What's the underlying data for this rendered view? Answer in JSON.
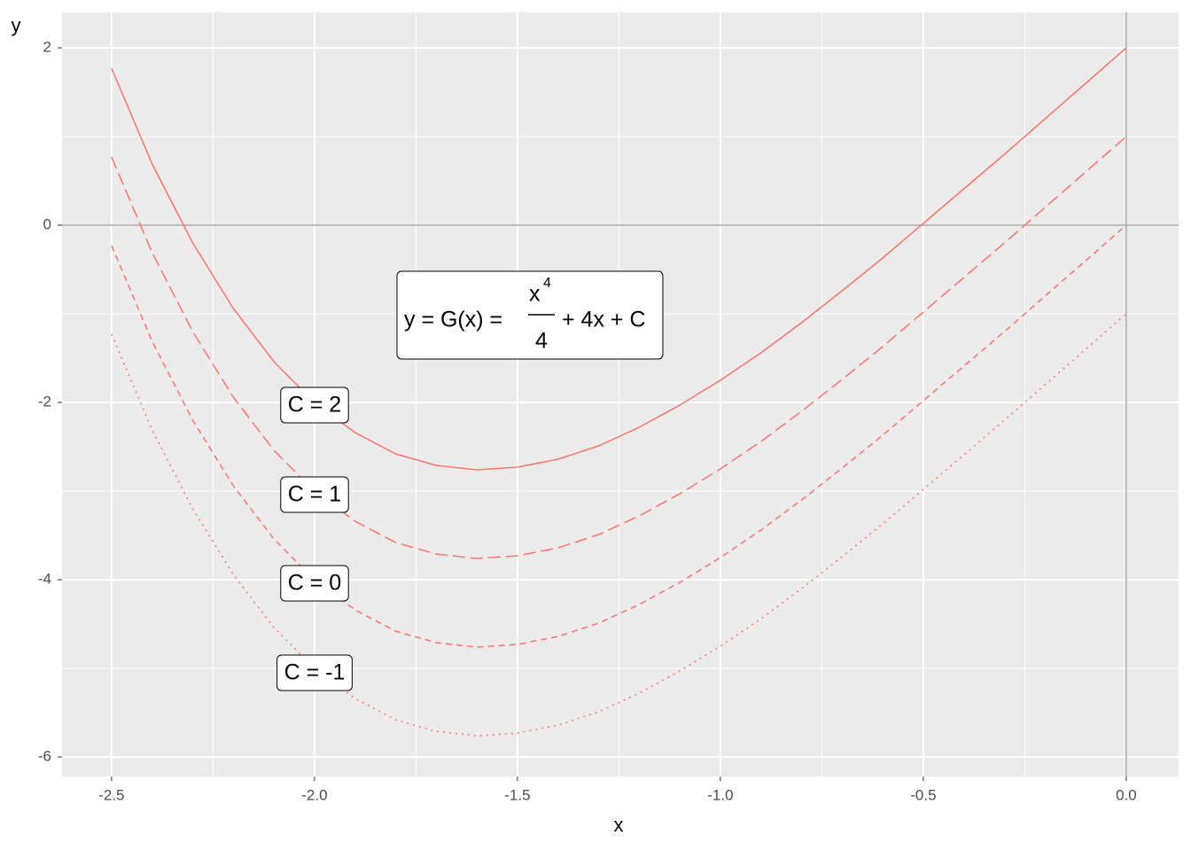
{
  "chart_data": {
    "type": "line",
    "x_label": "x",
    "y_label": "y",
    "x": [
      -2.5,
      -2.4,
      -2.3,
      -2.2,
      -2.1,
      -2,
      -1.9,
      -1.8,
      -1.7,
      -1.6,
      -1.5,
      -1.4,
      -1.3,
      -1.2,
      -1.1,
      -1,
      -0.9,
      -0.8,
      -0.7,
      -0.6,
      -0.5,
      -0.4,
      -0.3,
      -0.2,
      -0.1,
      0
    ],
    "series": [
      {
        "name": "C = 2",
        "color": "#F8766D",
        "linetype": "solid",
        "values": [
          1.77,
          0.69,
          -0.2,
          -0.94,
          -1.54,
          -2,
          -2.34,
          -2.58,
          -2.71,
          -2.76,
          -2.73,
          -2.64,
          -2.49,
          -2.28,
          -2.03,
          -1.75,
          -1.44,
          -1.1,
          -0.74,
          -0.37,
          0.02,
          0.41,
          0.8,
          1.2,
          1.6,
          2
        ]
      },
      {
        "name": "C = 1",
        "color": "#F8766D",
        "linetype": "longdash",
        "values": [
          0.77,
          -0.31,
          -1.2,
          -1.94,
          -2.54,
          -3,
          -3.34,
          -3.58,
          -3.71,
          -3.76,
          -3.73,
          -3.64,
          -3.49,
          -3.28,
          -3.03,
          -2.75,
          -2.44,
          -2.1,
          -1.74,
          -1.37,
          -0.98,
          -0.59,
          -0.2,
          0.2,
          0.6,
          1
        ]
      },
      {
        "name": "C = 0",
        "color": "#F8766D",
        "linetype": "dashed",
        "values": [
          -0.23,
          -1.31,
          -2.2,
          -2.94,
          -3.54,
          -4,
          -4.34,
          -4.58,
          -4.71,
          -4.76,
          -4.73,
          -4.64,
          -4.49,
          -4.28,
          -4.03,
          -3.75,
          -3.44,
          -3.1,
          -2.74,
          -2.37,
          -1.98,
          -1.59,
          -1.2,
          -0.8,
          -0.4,
          0
        ]
      },
      {
        "name": "C = -1",
        "color": "#F8766D",
        "linetype": "dotted",
        "values": [
          -1.23,
          -2.31,
          -3.2,
          -3.94,
          -4.54,
          -5,
          -5.34,
          -5.58,
          -5.71,
          -5.76,
          -5.73,
          -5.64,
          -5.49,
          -5.28,
          -5.03,
          -4.75,
          -4.44,
          -4.1,
          -3.74,
          -3.37,
          -2.98,
          -2.59,
          -2.2,
          -1.8,
          -1.4,
          -1
        ]
      }
    ],
    "xlim": [
      -2.622,
      0.129
    ],
    "ylim": [
      -6.22,
      2.4
    ],
    "xticks": [
      -2.5,
      {
        "value": -2,
        "label": "-2.0"
      },
      -1.5,
      {
        "value": -1,
        "label": "-1.0"
      },
      -0.5,
      {
        "value": 0,
        "label": "0.0"
      }
    ],
    "yticks": [
      -6,
      -4,
      -2,
      0,
      2
    ],
    "grid": true,
    "hline": 0,
    "vline": 0,
    "formula": {
      "lhs": "y = G(x) =",
      "numerator": "x",
      "exponent": "4",
      "denominator": "4",
      "rhs": "+ 4x + C"
    }
  }
}
